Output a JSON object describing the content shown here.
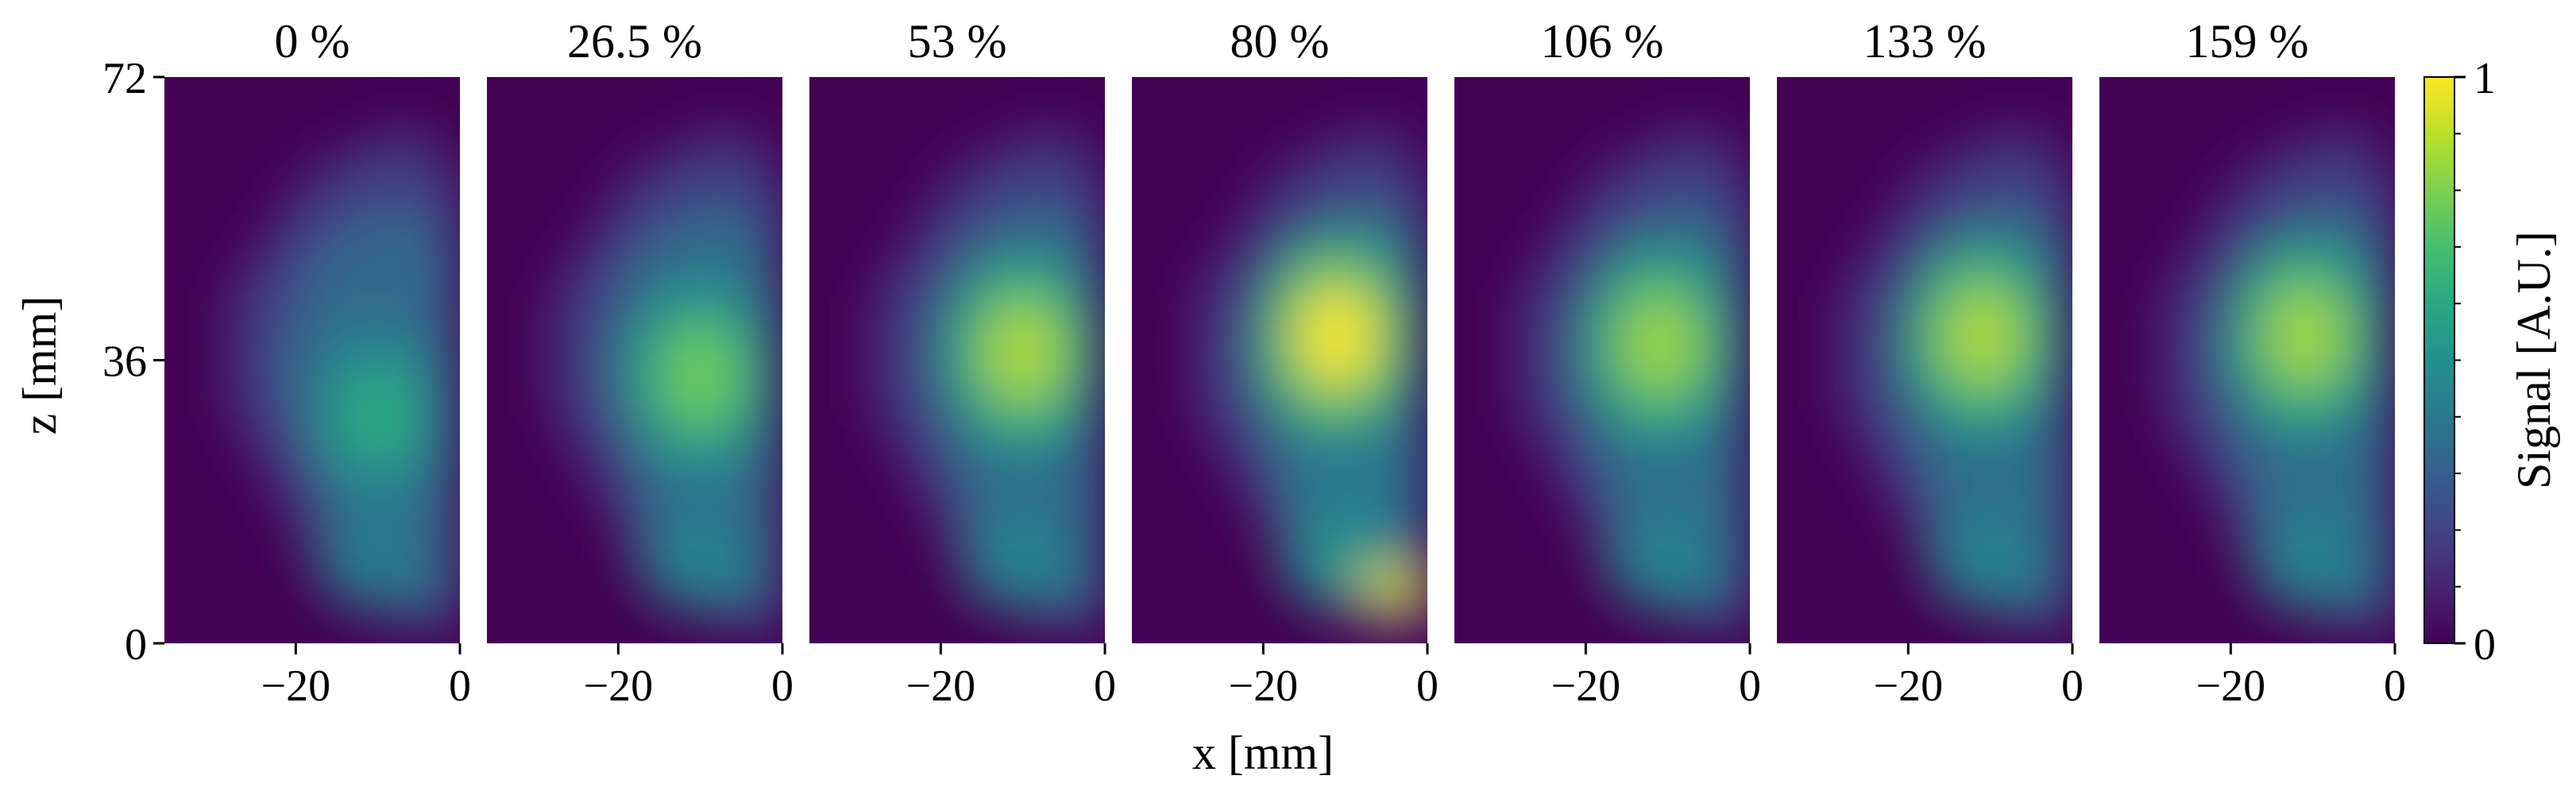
{
  "chart_data": {
    "type": "heatmap",
    "xlabel": "x [mm]",
    "ylabel": "z [mm]",
    "xlim": [
      -36,
      0
    ],
    "ylim": [
      0,
      72
    ],
    "x_ticks": [
      -20,
      0
    ],
    "x_tick_labels": [
      "−20",
      "0"
    ],
    "y_ticks": [
      0,
      36,
      72
    ],
    "y_tick_labels": [
      "0",
      "36",
      "72"
    ],
    "colorscale": "viridis",
    "colorbar": {
      "label": "Signal [A.U.]",
      "range": [
        0,
        1
      ],
      "tick_labels": [
        "0",
        "1"
      ],
      "colors": [
        "#440154",
        "#3b528b",
        "#21908c",
        "#5dc963",
        "#fde725"
      ]
    },
    "panels": [
      {
        "title": "0 %",
        "peak_x": -10,
        "peak_z": 29,
        "peak_signal": 0.62,
        "base_signal": 0.42,
        "bottom_patch": 0.0
      },
      {
        "title": "26.5 %",
        "peak_x": -10,
        "peak_z": 34,
        "peak_signal": 0.78,
        "base_signal": 0.45,
        "bottom_patch": 0.0
      },
      {
        "title": "53 %",
        "peak_x": -10,
        "peak_z": 37,
        "peak_signal": 0.88,
        "base_signal": 0.45,
        "bottom_patch": 0.0
      },
      {
        "title": "80 %",
        "peak_x": -11,
        "peak_z": 39,
        "peak_signal": 1.0,
        "base_signal": 0.5,
        "bottom_patch": 0.95
      },
      {
        "title": "106 %",
        "peak_x": -11,
        "peak_z": 38,
        "peak_signal": 0.85,
        "base_signal": 0.45,
        "bottom_patch": 0.0
      },
      {
        "title": "133 %",
        "peak_x": -11,
        "peak_z": 39,
        "peak_signal": 0.88,
        "base_signal": 0.45,
        "bottom_patch": 0.0
      },
      {
        "title": "159 %",
        "peak_x": -11,
        "peak_z": 39,
        "peak_signal": 0.86,
        "base_signal": 0.45,
        "bottom_patch": 0.0
      }
    ]
  }
}
